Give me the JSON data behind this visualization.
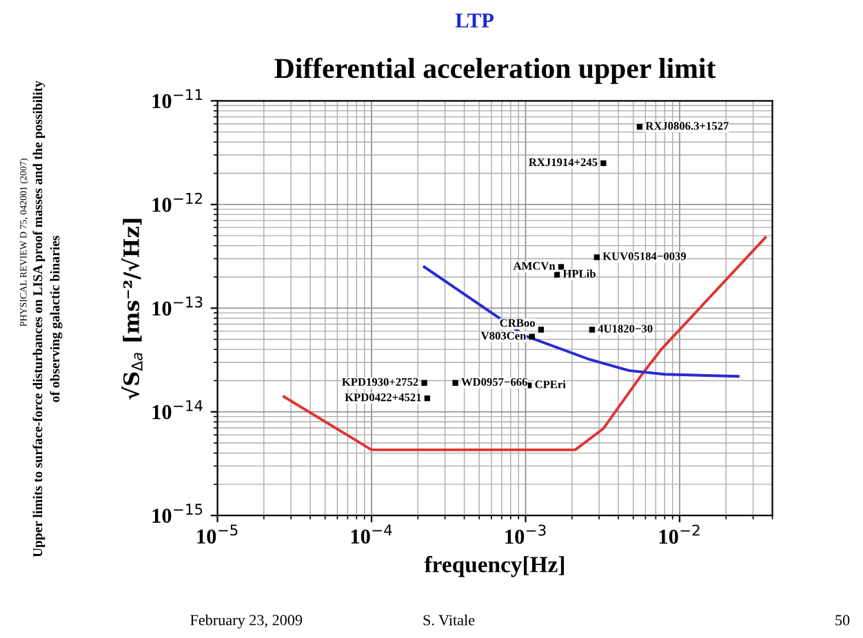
{
  "chart_data": {
    "type": "line",
    "title": "Differential acceleration upper limit",
    "xlabel": "frequency[Hz]",
    "ylabel": "√S$_{Δa}$ [ms⁻²/√Hz]",
    "log": "xy",
    "grid": true,
    "marker": "none",
    "line_style": "solid",
    "xlim": [
      1e-05,
      0.04
    ],
    "ylim": [
      1e-15,
      1e-11
    ],
    "xticks": [
      {
        "value": 1e-05,
        "label": "10$^{−5}$"
      },
      {
        "value": 0.0001,
        "label": "10$^{−4}$"
      },
      {
        "value": 0.001,
        "label": "10$^{−3}$"
      },
      {
        "value": 0.01,
        "label": "10$^{−2}$"
      }
    ],
    "yticks": [
      {
        "value": 1e-15,
        "label": "10$^{−15}$"
      },
      {
        "value": 1e-14,
        "label": "10$^{−14}$"
      },
      {
        "value": 1e-13,
        "label": "10$^{−13}$"
      },
      {
        "value": 1e-12,
        "label": "10$^{−12}$"
      },
      {
        "value": 1e-11,
        "label": "10$^{−11}$"
      }
    ],
    "series": [
      {
        "color": "#e03535",
        "x": [
          2.7e-05,
          0.0001,
          0.0021,
          0.0032,
          0.0057,
          0.0076,
          0.036
        ],
        "values": [
          1.4e-14,
          4.3e-15,
          4.3e-15,
          6.9e-15,
          2.3e-14,
          4e-14,
          4.8e-13
        ]
      },
      {
        "color": "#2a2ad0",
        "x": [
          0.00022,
          0.001,
          0.0026,
          0.0047,
          0.008,
          0.024
        ],
        "values": [
          2.5e-13,
          5.4e-14,
          3.2e-14,
          2.5e-14,
          2.3e-14,
          2.2e-14
        ]
      }
    ],
    "annotations": [
      {
        "text": "RXJ0806.3+1527",
        "x": 0.0055,
        "y": 5.6e-12
      },
      {
        "text": "RXJ1914+245",
        "x": 0.0032,
        "y": 2.5e-12
      },
      {
        "text": "KUV05184−0039",
        "x": 0.0029,
        "y": 3.1e-13
      },
      {
        "text": "AMCVn",
        "x": 0.0017,
        "y": 2.5e-13
      },
      {
        "text": "HPLib",
        "x": 0.0016,
        "y": 2.1e-13
      },
      {
        "text": "CRBoo",
        "x": 0.00126,
        "y": 6.2e-14
      },
      {
        "text": "V803Cen",
        "x": 0.0011,
        "y": 5.3e-14
      },
      {
        "text": "4U1820−30",
        "x": 0.0027,
        "y": 6.2e-14
      },
      {
        "text": "KPD1930+2752",
        "x": 0.00022,
        "y": 1.9e-14
      },
      {
        "text": "WD0957−666",
        "x": 0.00035,
        "y": 1.9e-14
      },
      {
        "text": "CPEri",
        "x": 0.00105,
        "y": 1.8e-14
      },
      {
        "text": "KPD0422+4521",
        "x": 0.00023,
        "y": 1.35e-14
      },
      "LTP",
      "PHYSICAL REVIEW D 75, 042001 (2007)",
      "Upper limits to surface-force disturbances on LISA proof masses and the possibility",
      "of observing galactic binaries",
      "February 23, 2009",
      "S. Vitale",
      "50"
    ]
  }
}
